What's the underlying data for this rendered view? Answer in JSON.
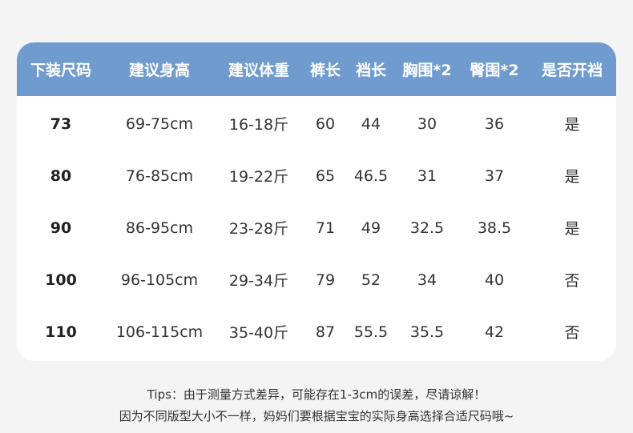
{
  "colors": {
    "header_bg": "#6f9bcf",
    "header_text": "#ffffff",
    "page_bg": "#f4f4f4"
  },
  "table": {
    "headers": [
      "下装尺码",
      "建议身高",
      "建议体重",
      "裤长",
      "裆长",
      "胸围*2",
      "臀围*2",
      "是否开裆"
    ],
    "rows": [
      [
        "73",
        "69-75cm",
        "16-18斤",
        "60",
        "44",
        "30",
        "36",
        "是"
      ],
      [
        "80",
        "76-85cm",
        "19-22斤",
        "65",
        "46.5",
        "31",
        "37",
        "是"
      ],
      [
        "90",
        "86-95cm",
        "23-28斤",
        "71",
        "49",
        "32.5",
        "38.5",
        "是"
      ],
      [
        "100",
        "96-105cm",
        "29-34斤",
        "79",
        "52",
        "34",
        "40",
        "否"
      ],
      [
        "110",
        "106-115cm",
        "35-40斤",
        "87",
        "55.5",
        "35.5",
        "42",
        "否"
      ]
    ]
  },
  "tips": {
    "line1": "Tips：由于测量方式差异，可能存在1-3cm的误差，尽请谅解！",
    "line2": "因为不同版型大小不一样，妈妈们要根据宝宝的实际身高选择合适尺码哦~"
  }
}
